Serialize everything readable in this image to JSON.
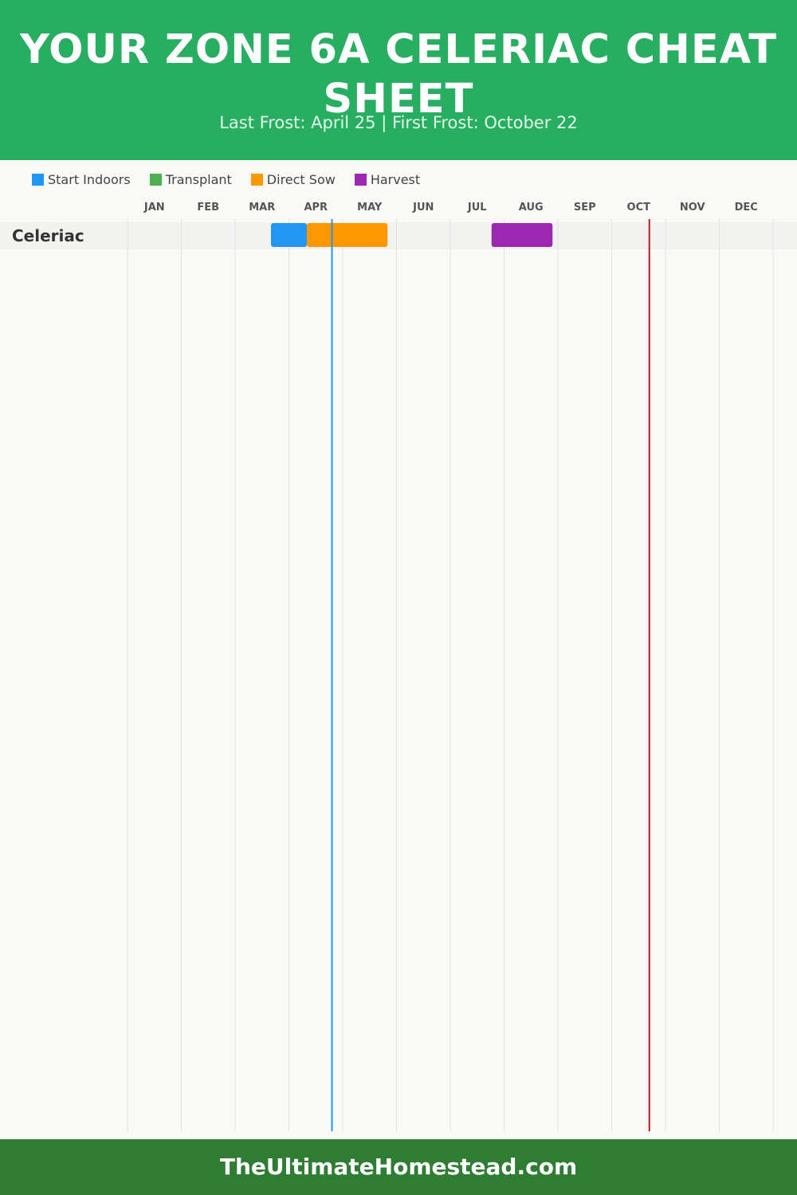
{
  "header": {
    "title": "YOUR ZONE 6A CELERIAC CHEAT SHEET",
    "subtitle": "Last Frost: April 25 | First Frost: October 22",
    "background": "#27ae60"
  },
  "legend": [
    {
      "label": "Start Indoors",
      "color": "#2196f3"
    },
    {
      "label": "Transplant",
      "color": "#4caf50"
    },
    {
      "label": "Direct Sow",
      "color": "#ff9800"
    },
    {
      "label": "Harvest",
      "color": "#9c27b0"
    }
  ],
  "chart_data": {
    "type": "gantt",
    "title": "YOUR ZONE 6A CELERIAC CHEAT SHEET",
    "subtitle": "Last Frost: April 25 | First Frost: October 22",
    "months": [
      "JAN",
      "FEB",
      "MAR",
      "APR",
      "MAY",
      "JUN",
      "JUL",
      "AUG",
      "SEP",
      "OCT",
      "NOV",
      "DEC"
    ],
    "rows": [
      {
        "name": "Celeriac",
        "tasks": [
          {
            "type": "Start Indoors",
            "start": "Mar 21",
            "end": "Apr 11",
            "color": "#2196f3"
          },
          {
            "type": "Direct Sow",
            "start": "Apr 11",
            "end": "May 26",
            "color": "#ff9800"
          },
          {
            "type": "Harvest",
            "start": "Jul 24",
            "end": "Aug 28",
            "color": "#9c27b0"
          }
        ]
      }
    ],
    "markers": [
      {
        "type": "Last Frost",
        "date": "Apr 25",
        "color": "#2196f3"
      },
      {
        "type": "First Frost",
        "date": "Oct 22",
        "color": "#b71c1c"
      }
    ],
    "grid": true
  },
  "footer": {
    "text": "TheUltimateHomestead.com",
    "background": "#2e7d32"
  }
}
